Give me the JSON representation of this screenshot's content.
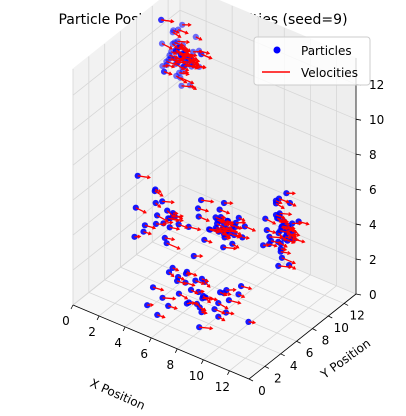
{
  "chart_data": {
    "type": "scatter",
    "projection": "3d",
    "title": "Particle Positions and Velocities (seed=9)",
    "xlabel": "X Position",
    "ylabel": "Y Position",
    "zlabel": "",
    "xlim": [
      0,
      13.5
    ],
    "ylim": [
      0,
      13.5
    ],
    "zlim": [
      0,
      13.5
    ],
    "xticks": [
      "0",
      "2",
      "4",
      "6",
      "8",
      "10",
      "12"
    ],
    "yticks": [
      "0",
      "2",
      "4",
      "6",
      "8",
      "10",
      "12"
    ],
    "zticks": [
      "0",
      "2",
      "4",
      "6",
      "8",
      "10",
      "12"
    ],
    "legend_position": "top-right",
    "grid": true,
    "series": [
      {
        "name": "Particles",
        "kind": "scatter",
        "color": "#0000ff"
      },
      {
        "name": "Velocities",
        "kind": "quiver",
        "color": "#ff0000"
      }
    ],
    "clusters": [
      {
        "center": [
          2,
          10,
          11
        ],
        "spread": [
          1.1,
          1.1,
          1.3
        ],
        "count": 70
      },
      {
        "center": [
          11.5,
          7,
          5
        ],
        "spread": [
          0.7,
          1.4,
          1.6
        ],
        "count": 45
      },
      {
        "center": [
          7,
          7,
          4
        ],
        "spread": [
          1.2,
          1.2,
          0.8
        ],
        "count": 35
      },
      {
        "center": [
          5,
          3,
          5
        ],
        "spread": [
          1.6,
          2.2,
          1.5
        ],
        "count": 25
      },
      {
        "center": [
          7,
          3,
          1.5
        ],
        "spread": [
          3.2,
          2.5,
          1.0
        ],
        "count": 40
      }
    ]
  }
}
